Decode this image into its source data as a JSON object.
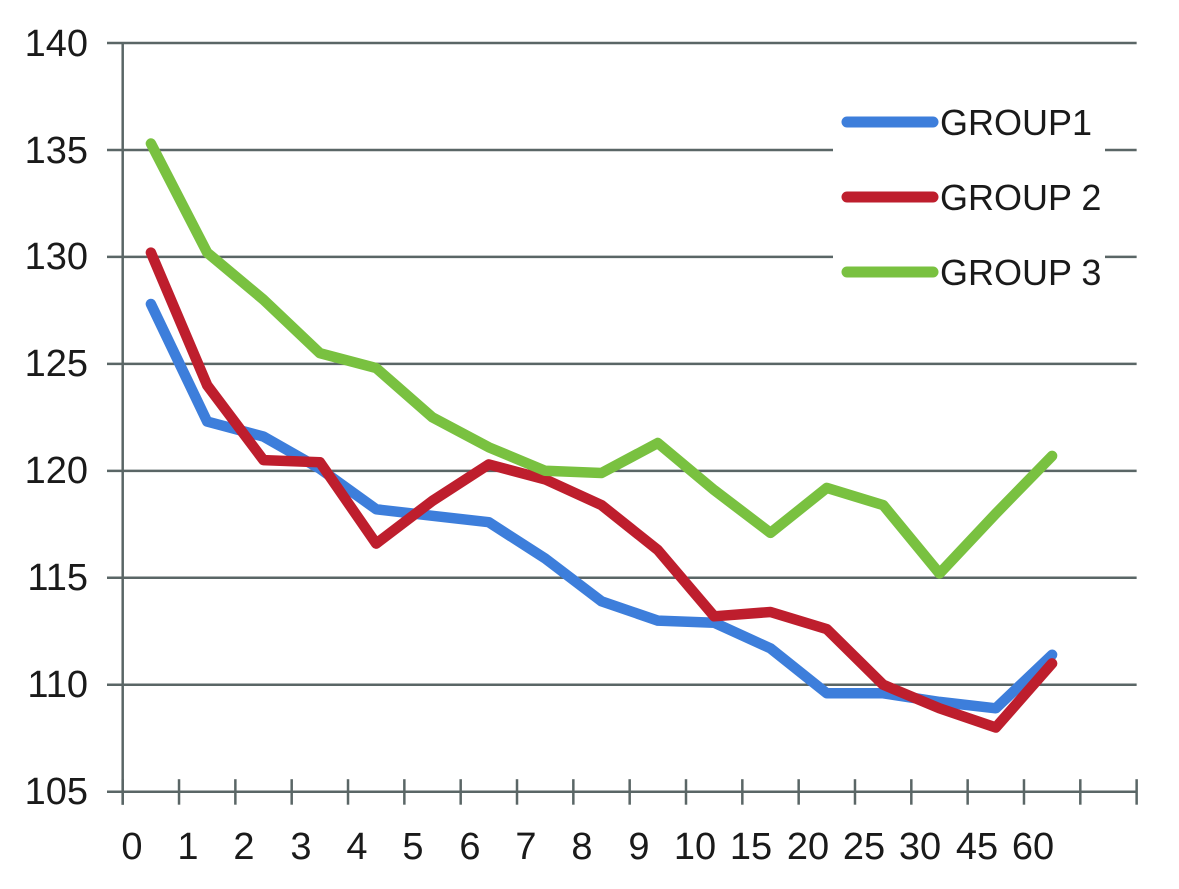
{
  "chart_data": {
    "type": "line",
    "title": "",
    "xlabel": "",
    "ylabel": "",
    "categories": [
      "0",
      "1",
      "2",
      "3",
      "4",
      "5",
      "6",
      "7",
      "8",
      "9",
      "10",
      "15",
      "20",
      "25",
      "30",
      "45",
      "60"
    ],
    "series": [
      {
        "name": "GROUP1",
        "color": "#3d7edb",
        "values": [
          127.8,
          122.3,
          121.6,
          120.1,
          118.2,
          117.9,
          117.6,
          115.9,
          113.9,
          113.0,
          112.9,
          111.7,
          109.6,
          109.6,
          109.2,
          108.9,
          111.4
        ]
      },
      {
        "name": "GROUP 2",
        "color": "#be1e2d",
        "values": [
          130.2,
          124.0,
          120.5,
          120.4,
          116.6,
          118.6,
          120.3,
          119.6,
          118.4,
          116.3,
          113.2,
          113.4,
          112.6,
          110.0,
          108.9,
          108.0,
          111.0
        ]
      },
      {
        "name": "GROUP 3",
        "color": "#79c140",
        "values": [
          135.3,
          130.2,
          128.0,
          125.5,
          124.8,
          122.5,
          121.1,
          120.0,
          119.9,
          121.3,
          119.1,
          117.1,
          119.2,
          118.4,
          115.2,
          118.0,
          120.7
        ]
      }
    ],
    "ylim": [
      105,
      140
    ],
    "y_ticks": [
      140,
      135,
      130,
      125,
      120,
      115,
      110,
      105
    ],
    "y_tick_labels": [
      "140",
      "135",
      "130",
      "125",
      "120",
      "115",
      "110",
      "105"
    ],
    "grid": "horizontal",
    "legend_position": "top-right",
    "axis_color": "#5a6666",
    "text_color": "#1a1a1a",
    "background": "#ffffff"
  }
}
